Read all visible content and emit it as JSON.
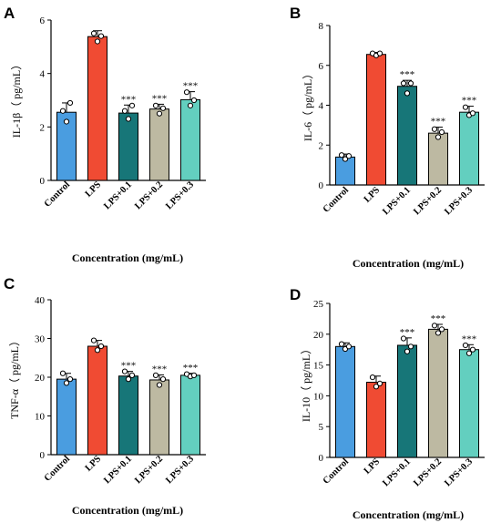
{
  "colors": {
    "Control": "#4A9DE0",
    "LPS": "#F04B33",
    "LPS+0.1": "#177678",
    "LPS+0.2": "#BDB9A2",
    "LPS+0.3": "#63CFBF",
    "axis": "#000000",
    "errorbar": "#000000"
  },
  "chart_data": [
    {
      "panel": "A",
      "type": "bar",
      "categories": [
        "Control",
        "LPS",
        "LPS+0.1",
        "LPS+0.2",
        "LPS+0.3"
      ],
      "values": [
        2.55,
        5.38,
        2.52,
        2.67,
        3.02
      ],
      "errors": [
        0.35,
        0.22,
        0.3,
        0.18,
        0.3
      ],
      "points": [
        [
          2.6,
          2.2,
          2.9
        ],
        [
          5.5,
          5.2,
          5.4
        ],
        [
          2.6,
          2.3,
          2.8
        ],
        [
          2.8,
          2.5,
          2.7
        ],
        [
          3.3,
          2.8,
          3.0
        ]
      ],
      "significance": [
        "",
        "",
        "***",
        "***",
        "***"
      ],
      "ylabel": "IL-1β（ pg/mL）",
      "xlabel": "Concentration (mg/mL)",
      "ylim": [
        0,
        6
      ],
      "yticks": [
        0,
        2,
        4,
        6
      ],
      "grid": false
    },
    {
      "panel": "B",
      "type": "bar",
      "categories": [
        "Control",
        "LPS",
        "LPS+0.1",
        "LPS+0.2",
        "LPS+0.3"
      ],
      "values": [
        1.4,
        6.55,
        4.95,
        2.6,
        3.65
      ],
      "errors": [
        0.15,
        0.1,
        0.3,
        0.3,
        0.3
      ],
      "points": [
        [
          1.5,
          1.3,
          1.45
        ],
        [
          6.6,
          6.5,
          6.6
        ],
        [
          5.1,
          4.6,
          5.1
        ],
        [
          2.8,
          2.4,
          2.65
        ],
        [
          3.9,
          3.5,
          3.6
        ]
      ],
      "significance": [
        "",
        "",
        "***",
        "***",
        "***"
      ],
      "ylabel": "IL-6（ pg/mL）",
      "xlabel": "Concentration (mg/mL)",
      "ylim": [
        0,
        8
      ],
      "yticks": [
        0,
        2,
        4,
        6,
        8
      ],
      "grid": false
    },
    {
      "panel": "C",
      "type": "bar",
      "categories": [
        "Control",
        "LPS",
        "LPS+0.1",
        "LPS+0.2",
        "LPS+0.3"
      ],
      "values": [
        19.5,
        28.0,
        20.3,
        19.3,
        20.5
      ],
      "errors": [
        1.5,
        1.5,
        1.2,
        1.3,
        0.5
      ],
      "points": [
        [
          21.0,
          18.5,
          19.5
        ],
        [
          29.5,
          27.0,
          28.0
        ],
        [
          21.5,
          19.5,
          20.5
        ],
        [
          20.5,
          18.0,
          19.5
        ],
        [
          20.8,
          20.2,
          20.5
        ]
      ],
      "significance": [
        "",
        "",
        "***",
        "***",
        "***"
      ],
      "ylabel": "TNF-α（ pg/mL）",
      "xlabel": "Concentration (mg/mL)",
      "ylim": [
        0,
        40
      ],
      "yticks": [
        0,
        10,
        20,
        30,
        40
      ],
      "grid": false
    },
    {
      "panel": "D",
      "type": "bar",
      "categories": [
        "Control",
        "LPS",
        "LPS+0.1",
        "LPS+0.2",
        "LPS+0.3"
      ],
      "values": [
        18.0,
        12.2,
        18.2,
        20.8,
        17.5
      ],
      "errors": [
        0.6,
        1.0,
        1.2,
        0.8,
        0.8
      ],
      "points": [
        [
          18.4,
          17.6,
          18.0
        ],
        [
          13.0,
          11.5,
          12.0
        ],
        [
          19.3,
          17.2,
          18.0
        ],
        [
          21.4,
          20.2,
          20.8
        ],
        [
          18.2,
          16.9,
          17.5
        ]
      ],
      "significance": [
        "",
        "",
        "***",
        "***",
        "***"
      ],
      "ylabel": "IL-10（ pg/mL）",
      "xlabel": "Concentration (mg/mL)",
      "ylim": [
        0,
        25
      ],
      "yticks": [
        0,
        5,
        10,
        15,
        20,
        25
      ],
      "grid": false
    }
  ]
}
